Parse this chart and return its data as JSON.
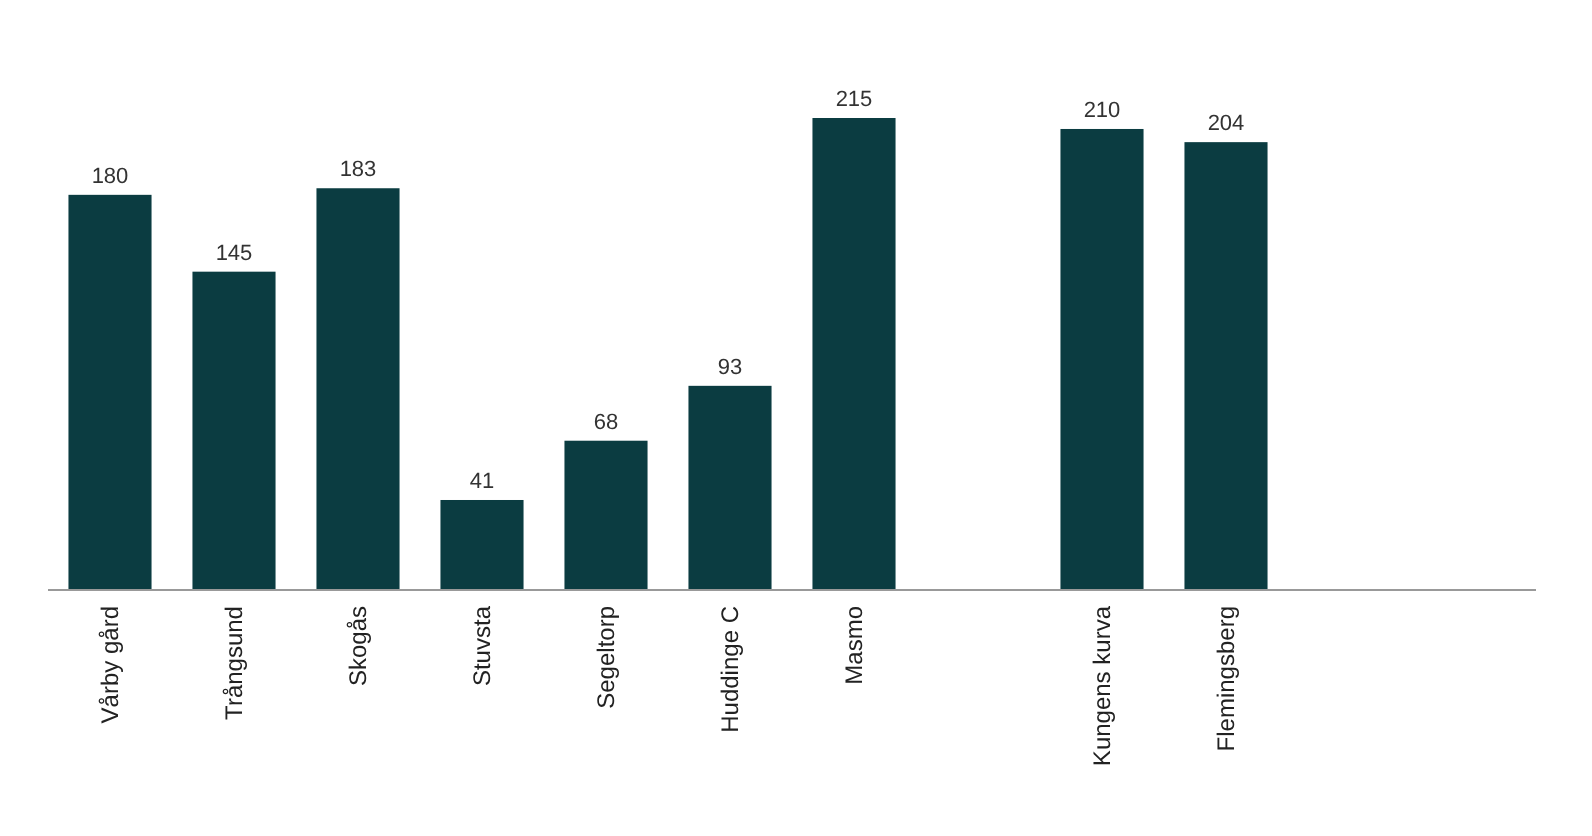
{
  "chart_data": {
    "type": "bar",
    "categories": [
      "Vårby gård",
      "Trångsund",
      "Skogås",
      "Stuvsta",
      "Segeltorp",
      "Huddinge C",
      "Masmo",
      null,
      "Kungens kurva",
      "Flemingsberg",
      null,
      null
    ],
    "values": [
      180,
      145,
      183,
      41,
      68,
      93,
      215,
      null,
      210,
      204,
      null,
      null
    ],
    "color": "#0b3c41",
    "data_labels": true
  }
}
